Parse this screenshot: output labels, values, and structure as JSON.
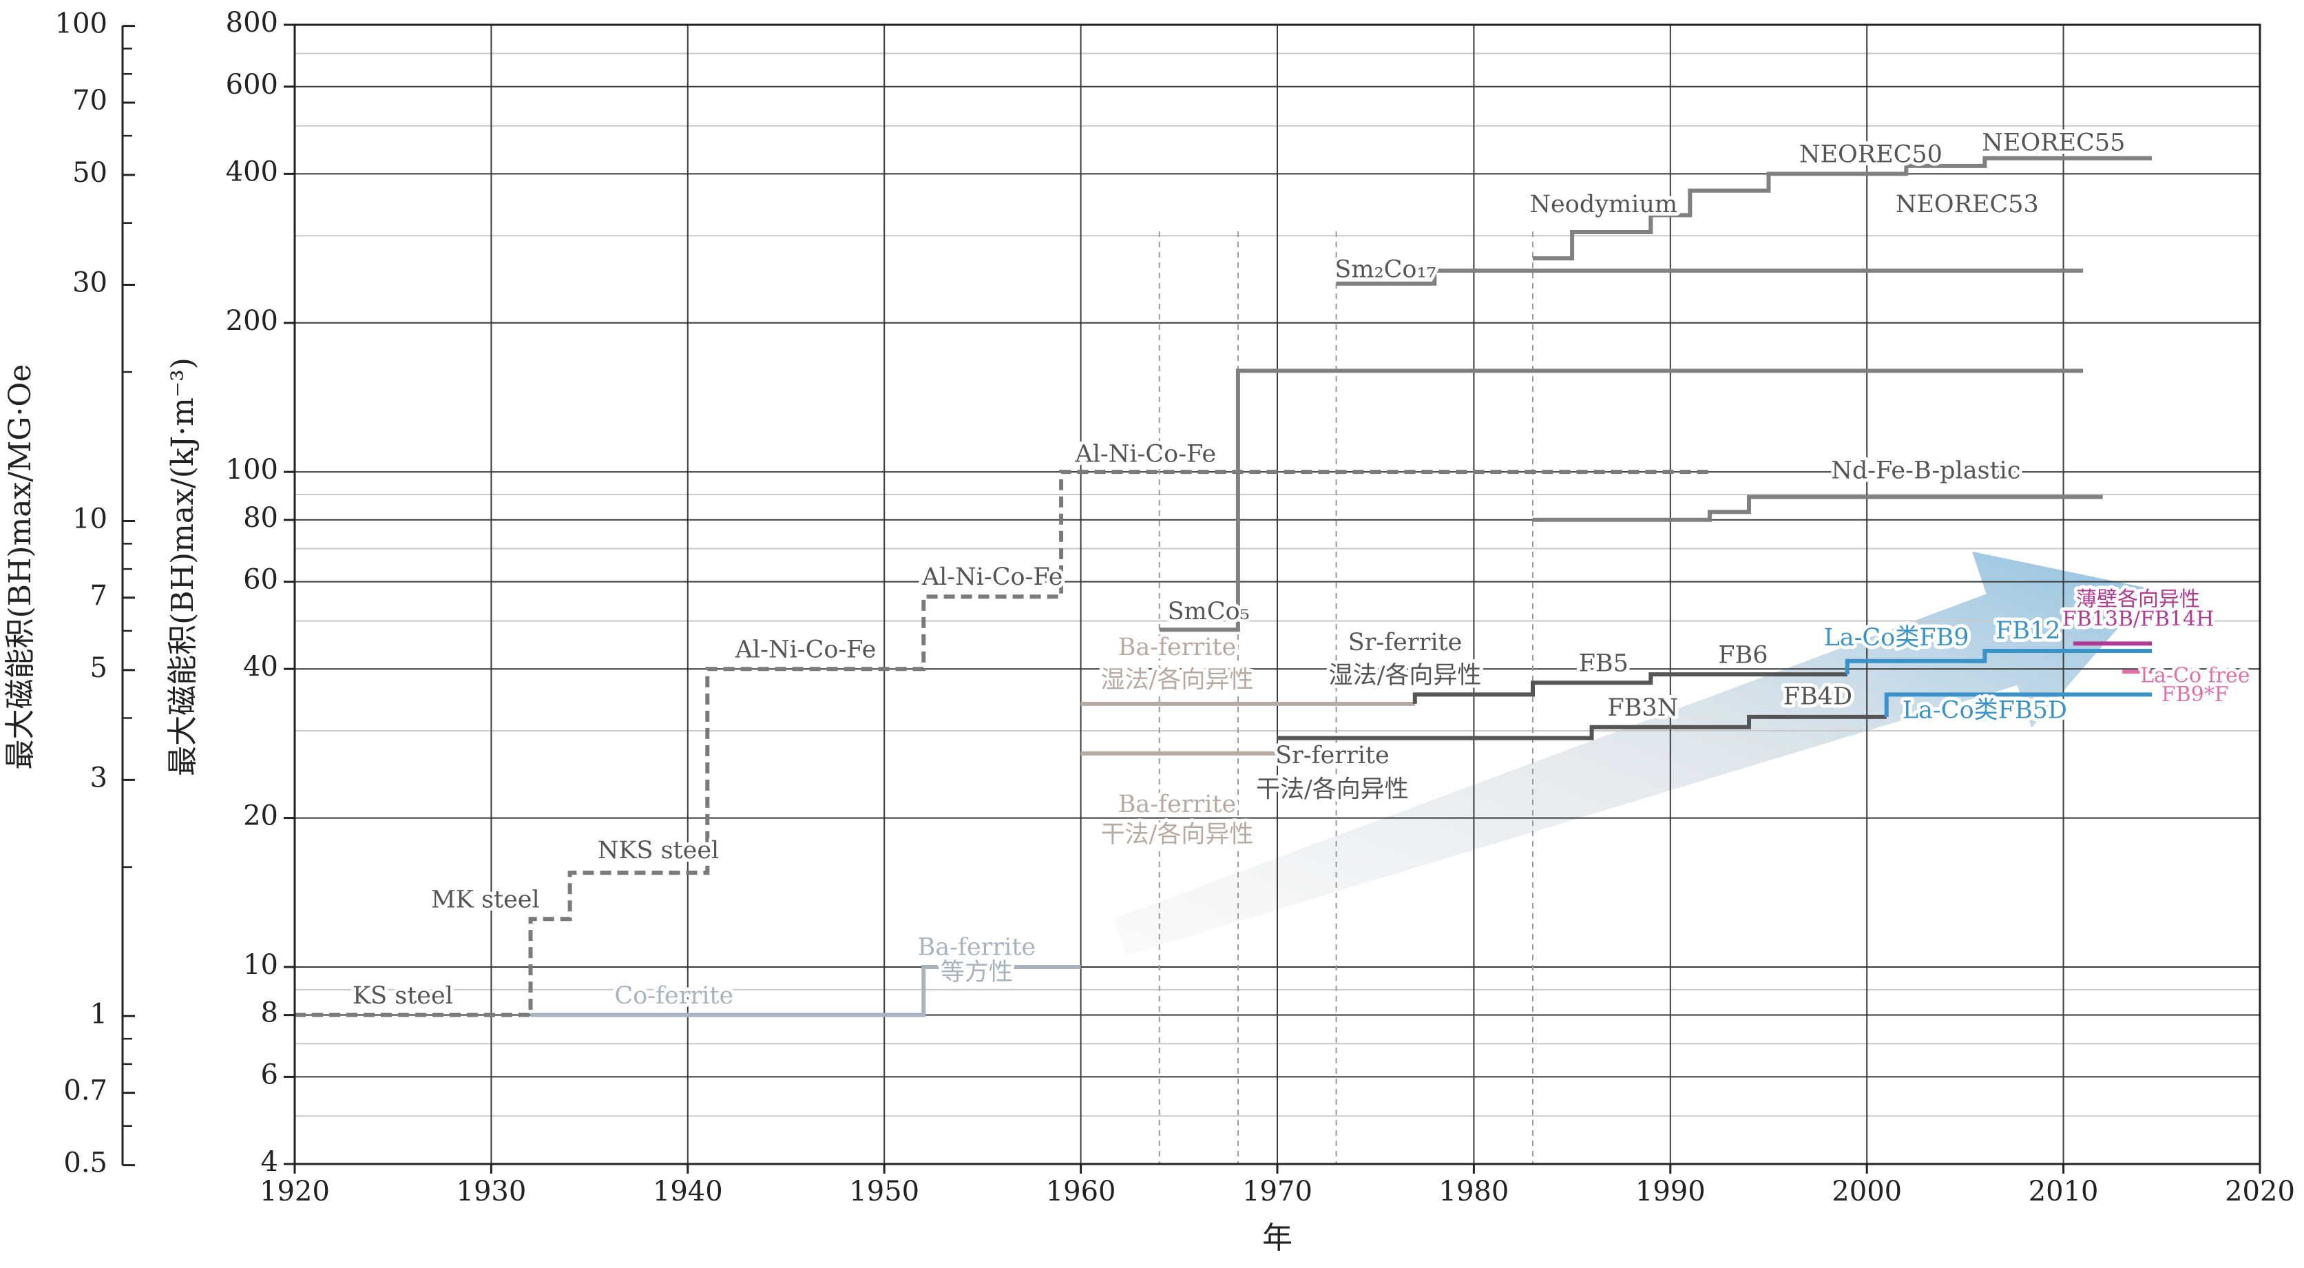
{
  "chart_data": {
    "type": "line",
    "title": "",
    "xlabel": "年",
    "ylabel": "最大磁能积(BH)max/(kJ·m⁻³)",
    "ylabel_secondary": "最大磁能积(BH)max/MG·Oe",
    "xlim": [
      1920,
      2020
    ],
    "ylim": [
      4,
      800
    ],
    "y_scale": "log",
    "grid": true,
    "x_ticks": [
      "1920",
      "1930",
      "1940",
      "1950",
      "1960",
      "1970",
      "1980",
      "1990",
      "2000",
      "2010",
      "2020"
    ],
    "y_ticks": [
      "4",
      "6",
      "8",
      "10",
      "20",
      "40",
      "60",
      "80",
      "100",
      "200",
      "400",
      "600",
      "800"
    ],
    "y_secondary_ticks": [
      "0.5",
      "0.7",
      "1",
      "3",
      "5",
      "7",
      "10",
      "30",
      "50",
      "70",
      "100"
    ],
    "colors": {
      "gray": "#808080",
      "dashed_gray": "#7a7a7a",
      "light_blue_gray": "#a7b4c0",
      "tan": "#b8aaa0",
      "dark_gray": "#555555",
      "blue": "#3a93c8",
      "magenta": "#b03a94",
      "pink": "#e070a8"
    },
    "guide_lines_x": [
      1964,
      1968,
      1973,
      1983
    ],
    "series": [
      {
        "color": "dashed_gray",
        "style": "dashed",
        "points": [
          [
            1920,
            8
          ],
          [
            1932,
            8
          ],
          [
            1932,
            12.5
          ],
          [
            1934,
            12.5
          ],
          [
            1934,
            15.5
          ],
          [
            1941,
            15.5
          ],
          [
            1941,
            40
          ],
          [
            1952,
            40
          ],
          [
            1952,
            56
          ],
          [
            1959,
            56
          ],
          [
            1959,
            100
          ],
          [
            1964,
            100
          ],
          [
            1992,
            100
          ]
        ]
      },
      {
        "color": "light_blue_gray",
        "style": "solid",
        "points": [
          [
            1932,
            8
          ],
          [
            1952,
            8
          ],
          [
            1952,
            10
          ],
          [
            1960,
            10
          ]
        ]
      },
      {
        "color": "gray",
        "style": "solid",
        "points": [
          [
            1964,
            48
          ],
          [
            1968,
            48
          ],
          [
            1968,
            160
          ],
          [
            2011,
            160
          ]
        ]
      },
      {
        "color": "gray",
        "style": "solid",
        "points": [
          [
            1973,
            240
          ],
          [
            1978,
            240
          ],
          [
            1978,
            255
          ],
          [
            2011,
            255
          ]
        ]
      },
      {
        "color": "gray",
        "style": "solid",
        "points": [
          [
            1983,
            270
          ],
          [
            1985,
            270
          ],
          [
            1985,
            305
          ],
          [
            1989,
            305
          ],
          [
            1989,
            330
          ],
          [
            1991,
            330
          ],
          [
            1991,
            370
          ],
          [
            1995,
            370
          ],
          [
            1995,
            400
          ],
          [
            2002,
            400
          ],
          [
            2002,
            415
          ],
          [
            2006,
            415
          ],
          [
            2006,
            430
          ],
          [
            2014.5,
            430
          ]
        ]
      },
      {
        "color": "gray",
        "style": "solid",
        "points": [
          [
            1983,
            80
          ],
          [
            1992,
            80
          ],
          [
            1992,
            83
          ],
          [
            1994,
            83
          ],
          [
            1994,
            89
          ],
          [
            2012,
            89
          ]
        ]
      },
      {
        "color": "tan",
        "style": "solid",
        "points": [
          [
            1960,
            34
          ],
          [
            1977,
            34
          ]
        ]
      },
      {
        "color": "tan",
        "style": "solid",
        "points": [
          [
            1960,
            27
          ],
          [
            1970,
            27
          ]
        ]
      },
      {
        "color": "dark_gray",
        "style": "solid",
        "points": [
          [
            1977,
            34
          ],
          [
            1977,
            35.5
          ],
          [
            1983,
            35.5
          ],
          [
            1983,
            37.5
          ],
          [
            1989,
            37.5
          ],
          [
            1989,
            39
          ],
          [
            1999,
            39
          ]
        ]
      },
      {
        "color": "dark_gray",
        "style": "solid",
        "points": [
          [
            1970,
            29
          ],
          [
            1986,
            29
          ],
          [
            1986,
            30.5
          ],
          [
            1994,
            30.5
          ],
          [
            1994,
            32
          ],
          [
            2001,
            32
          ]
        ]
      },
      {
        "color": "blue",
        "style": "solid",
        "points": [
          [
            1999,
            39
          ],
          [
            1999,
            41.5
          ],
          [
            2006,
            41.5
          ],
          [
            2006,
            43.5
          ],
          [
            2014.5,
            43.5
          ]
        ]
      },
      {
        "color": "blue",
        "style": "solid",
        "points": [
          [
            2001,
            32
          ],
          [
            2001,
            35.5
          ],
          [
            2014.5,
            35.5
          ]
        ]
      },
      {
        "color": "magenta",
        "style": "solid",
        "points": [
          [
            2010.5,
            45
          ],
          [
            2014.5,
            45
          ]
        ]
      },
      {
        "color": "pink",
        "style": "solid",
        "points": [
          [
            2013,
            39.5
          ],
          [
            2014.5,
            39.5
          ]
        ]
      }
    ],
    "annotations": [
      {
        "text": "KS steel",
        "x": 1925.5,
        "y": 8.7,
        "color": "dark_gray"
      },
      {
        "text": "MK steel",
        "x": 1929.7,
        "y": 13.6,
        "color": "dark_gray"
      },
      {
        "text": "NKS steel",
        "x": 1938.5,
        "y": 17.1,
        "color": "dark_gray"
      },
      {
        "text": "Al-Ni-Co-Fe",
        "x": 1946,
        "y": 43.5,
        "color": "dark_gray"
      },
      {
        "text": "Al-Ni-Co-Fe",
        "x": 1955.5,
        "y": 61,
        "color": "dark_gray"
      },
      {
        "text": "Al-Ni-Co-Fe",
        "x": 1963.3,
        "y": 108,
        "color": "dark_gray"
      },
      {
        "text": "Co-ferrite",
        "x": 1939.3,
        "y": 8.7,
        "color": "light_blue_gray"
      },
      {
        "text": "Ba-ferrite",
        "x": 1954.7,
        "y": 10.9,
        "color": "light_blue_gray"
      },
      {
        "text": "等方性",
        "x": 1954.7,
        "y": 9.7,
        "color": "light_blue_gray"
      },
      {
        "text": "SmCo₅",
        "x": 1966.5,
        "y": 52,
        "color": "dark_gray"
      },
      {
        "text": "Ba-ferrite",
        "x": 1964.9,
        "y": 44,
        "color": "tan"
      },
      {
        "text": "湿法/各向异性",
        "x": 1964.9,
        "y": 37.8,
        "color": "tan"
      },
      {
        "text": "Ba-ferrite",
        "x": 1964.9,
        "y": 21.2,
        "color": "tan"
      },
      {
        "text": "干法/各向异性",
        "x": 1964.9,
        "y": 18.4,
        "color": "tan"
      },
      {
        "text": "Sr-ferrite",
        "x": 1976.5,
        "y": 45,
        "color": "dark_gray"
      },
      {
        "text": "湿法/各向异性",
        "x": 1976.5,
        "y": 38.6,
        "color": "dark_gray"
      },
      {
        "text": "Sr-ferrite",
        "x": 1972.8,
        "y": 26.6,
        "color": "dark_gray"
      },
      {
        "text": "干法/各向异性",
        "x": 1972.8,
        "y": 22.7,
        "color": "dark_gray"
      },
      {
        "text": "Sm₂Co₁₇",
        "x": 1975.5,
        "y": 255,
        "color": "dark_gray"
      },
      {
        "text": "Neodymium",
        "x": 1986.6,
        "y": 345,
        "color": "dark_gray"
      },
      {
        "text": "NEOREC50",
        "x": 2000.2,
        "y": 435,
        "color": "dark_gray"
      },
      {
        "text": "NEOREC55",
        "x": 2009.5,
        "y": 460,
        "color": "dark_gray"
      },
      {
        "text": "NEOREC53",
        "x": 2005.1,
        "y": 345,
        "color": "dark_gray"
      },
      {
        "text": "Nd-Fe-B-plastic",
        "x": 2003,
        "y": 100,
        "color": "dark_gray"
      },
      {
        "text": "FB5",
        "x": 1986.6,
        "y": 40.8,
        "color": "dark_gray"
      },
      {
        "text": "FB6",
        "x": 1993.7,
        "y": 42.4,
        "color": "dark_gray"
      },
      {
        "text": "FB3N",
        "x": 1988.6,
        "y": 33.2,
        "color": "dark_gray"
      },
      {
        "text": "FB4D",
        "x": 1997.5,
        "y": 35,
        "color": "dark_gray"
      },
      {
        "text": "La-Co类FB9",
        "x": 2001.5,
        "y": 46,
        "color": "blue"
      },
      {
        "text": "FB12",
        "x": 2008.2,
        "y": 47.5,
        "color": "blue"
      },
      {
        "text": "La-Co类FB5D",
        "x": 2006,
        "y": 32.8,
        "color": "blue"
      },
      {
        "text": "薄壁各向异性",
        "x": 2013.8,
        "y": 55,
        "color": "magenta",
        "size": "small"
      },
      {
        "text": "FB13B/FB14H",
        "x": 2013.8,
        "y": 50.2,
        "color": "magenta",
        "size": "small"
      },
      {
        "text": "La-Co free",
        "x": 2016.7,
        "y": 38.6,
        "color": "pink",
        "size": "small"
      },
      {
        "text": "FB9*F",
        "x": 2016.7,
        "y": 35.3,
        "color": "pink",
        "size": "small"
      }
    ]
  }
}
